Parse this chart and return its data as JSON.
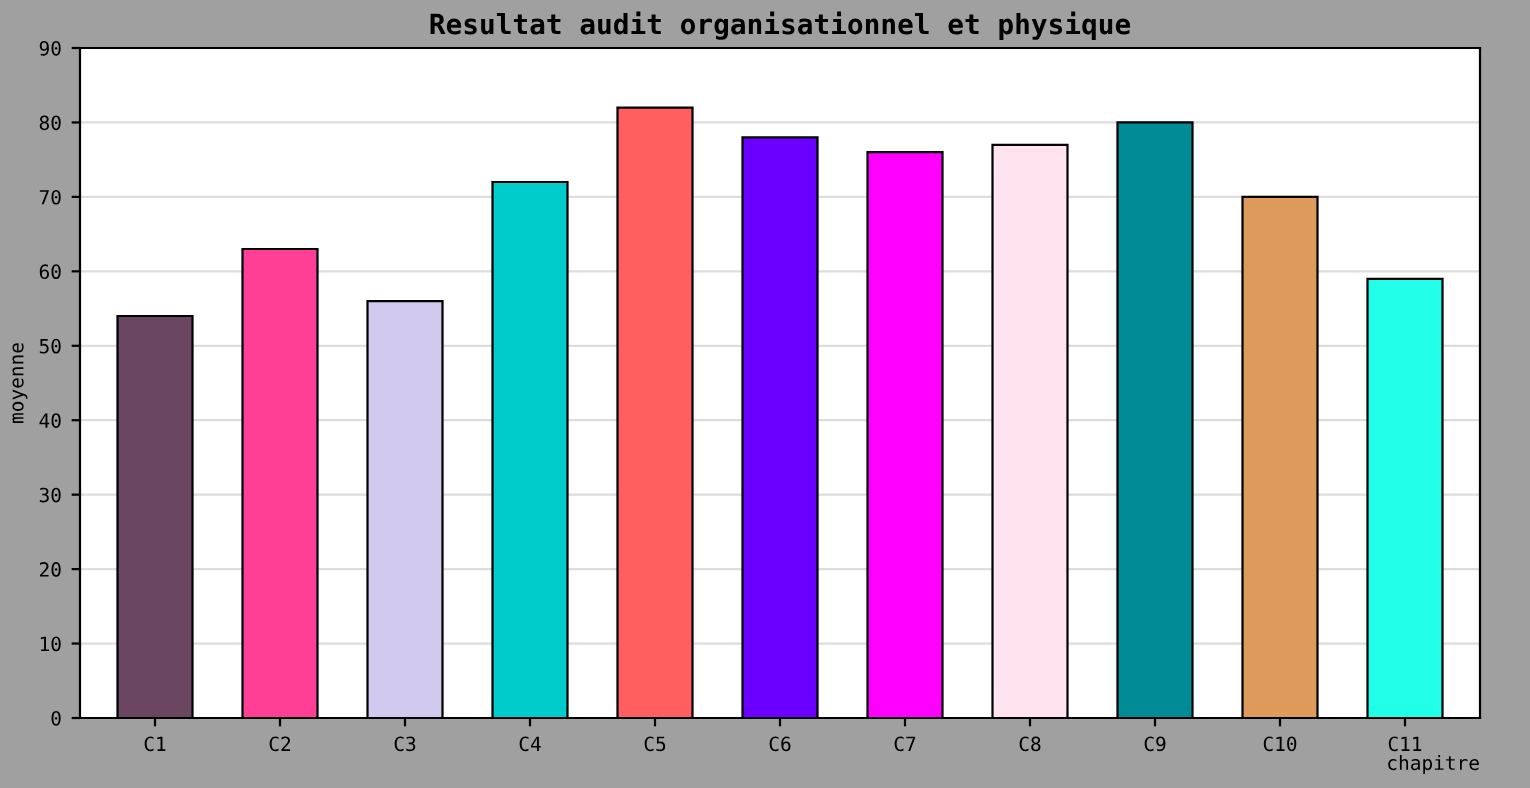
{
  "chart_data": {
    "type": "bar",
    "title": "Resultat audit organisationnel et physique",
    "xlabel": "chapitre",
    "ylabel": "moyenne",
    "categories": [
      "C1",
      "C2",
      "C3",
      "C4",
      "C5",
      "C6",
      "C7",
      "C8",
      "C9",
      "C10",
      "C11"
    ],
    "values": [
      54,
      63,
      56,
      72,
      82,
      78,
      76,
      77,
      80,
      70,
      59
    ],
    "colors": [
      "#6b4660",
      "#ff3f96",
      "#d2caee",
      "#00cccc",
      "#ff5f5f",
      "#6a00ff",
      "#ff00ff",
      "#ffe4ef",
      "#008b96",
      "#dd9a5a",
      "#22ffe8"
    ],
    "ylim": [
      0,
      90
    ],
    "yticks": [
      0,
      10,
      20,
      30,
      40,
      50,
      60,
      70,
      80,
      90
    ],
    "grid": "y"
  }
}
